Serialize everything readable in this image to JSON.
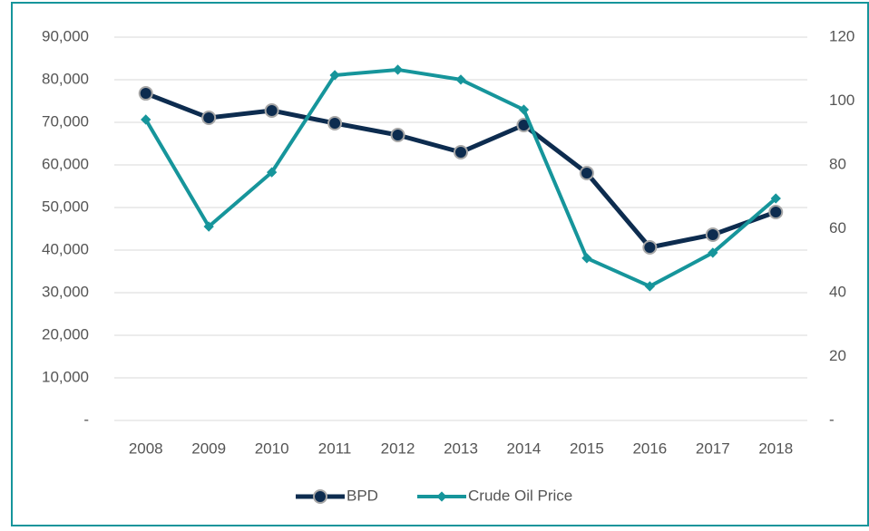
{
  "chart_data": {
    "type": "line",
    "categories": [
      "2008",
      "2009",
      "2010",
      "2011",
      "2012",
      "2013",
      "2014",
      "2015",
      "2016",
      "2017",
      "2018"
    ],
    "series": [
      {
        "name": "BPD",
        "color": "#0d2c4f",
        "values": [
          76800,
          71060,
          72770,
          69790,
          67020,
          62980,
          69360,
          58090,
          40640,
          43620,
          48940
        ]
      },
      {
        "name": "Crude Oil Price",
        "color": "#16959b",
        "axis": "y2",
        "values": [
          94.2,
          60.7,
          77.7,
          108.1,
          109.8,
          106.7,
          97.3,
          50.8,
          42.0,
          52.5,
          69.5
        ]
      }
    ],
    "ylim": [
      0,
      90000
    ],
    "yticks": [
      {
        "value": 0,
        "label": "-"
      },
      {
        "value": 10000,
        "label": "10,000"
      },
      {
        "value": 20000,
        "label": "20,000"
      },
      {
        "value": 30000,
        "label": "30,000"
      },
      {
        "value": 40000,
        "label": "40,000"
      },
      {
        "value": 50000,
        "label": "50,000"
      },
      {
        "value": 60000,
        "label": "60,000"
      },
      {
        "value": 70000,
        "label": "70,000"
      },
      {
        "value": 80000,
        "label": "80,000"
      },
      {
        "value": 90000,
        "label": "90,000"
      }
    ],
    "y2lim": [
      0,
      120
    ],
    "y2ticks": [
      {
        "value": 0,
        "label": "-"
      },
      20,
      40,
      60,
      80,
      100,
      120
    ],
    "grid": true,
    "legend": "bottom"
  }
}
